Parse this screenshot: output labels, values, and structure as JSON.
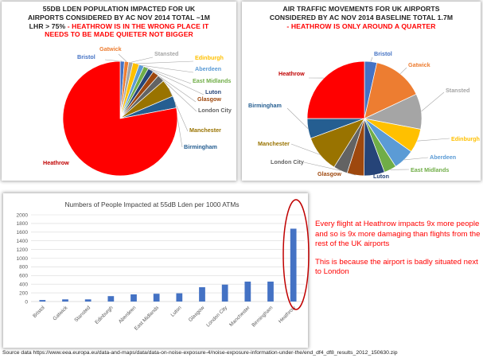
{
  "left_chart": {
    "title_lines": [
      "55DB LDEN POPULATION IMPACTED FOR UK",
      "AIRPORTS CONSIDERED BY AC NOV 2014 TOTAL ~1M",
      "LHR > 75% - HEATHROW IS IN THE WRONG PLACE IT",
      "NEEDS TO BE MADE QUIETER NOT BIGGER"
    ],
    "highlight_from": "- HEATHROW IS IN THE WRONG PLACE IT"
  },
  "right_chart": {
    "title_lines": [
      "AIR TRAFFIC MOVEMENTS FOR UK AIRPORTS",
      "CONSIDERED BY AC NOV 2014 BASELINE TOTAL 1.7M",
      "- HEATHROW IS ONLY AROUND A QUARTER"
    ]
  },
  "chart_data": [
    {
      "type": "pie",
      "title": "55DB LDEN POPULATION IMPACTED FOR UK AIRPORTS CONSIDERED BY AC NOV 2014 TOTAL ~1M LHR > 75% - HEATHROW IS IN THE WRONG PLACE IT NEEDS TO BE MADE QUIETER NOT BIGGER",
      "slices": [
        {
          "label": "Bristol",
          "value": 1.2,
          "color": "#4472C4"
        },
        {
          "label": "Gatwick",
          "value": 1.2,
          "color": "#ED7D31"
        },
        {
          "label": "Stansted",
          "value": 1.2,
          "color": "#A5A5A5"
        },
        {
          "label": "Edinburgh",
          "value": 1.8,
          "color": "#FFC000"
        },
        {
          "label": "Aberdeen",
          "value": 1.4,
          "color": "#5B9BD5"
        },
        {
          "label": "East Midlands",
          "value": 1.4,
          "color": "#70AD47"
        },
        {
          "label": "Luton",
          "value": 1.6,
          "color": "#264478"
        },
        {
          "label": "Glasgow",
          "value": 1.8,
          "color": "#9E480E"
        },
        {
          "label": "London City",
          "value": 2.0,
          "color": "#636363"
        },
        {
          "label": "Manchester",
          "value": 5.0,
          "color": "#997300"
        },
        {
          "label": "Birmingham",
          "value": 3.4,
          "color": "#255E91"
        },
        {
          "label": "Heathrow",
          "value": 78.0,
          "color": "#FF0000"
        }
      ]
    },
    {
      "type": "pie",
      "title": "AIR TRAFFIC MOVEMENTS FOR UK AIRPORTS CONSIDERED BY AC NOV 2014 BASELINE TOTAL 1.7M - HEATHROW IS ONLY AROUND A QUARTER",
      "slices": [
        {
          "label": "Bristol",
          "value": 3.5,
          "color": "#4472C4"
        },
        {
          "label": "Gatwick",
          "value": 14.5,
          "color": "#ED7D31"
        },
        {
          "label": "Stansted",
          "value": 10.0,
          "color": "#A5A5A5"
        },
        {
          "label": "Edinburgh",
          "value": 6.8,
          "color": "#FFC000"
        },
        {
          "label": "Aberdeen",
          "value": 6.0,
          "color": "#5B9BD5"
        },
        {
          "label": "East Midlands",
          "value": 3.5,
          "color": "#70AD47"
        },
        {
          "label": "Luton",
          "value": 5.8,
          "color": "#264478"
        },
        {
          "label": "Glasgow",
          "value": 4.8,
          "color": "#9E480E"
        },
        {
          "label": "London City",
          "value": 4.0,
          "color": "#636363"
        },
        {
          "label": "Manchester",
          "value": 10.5,
          "color": "#997300"
        },
        {
          "label": "Birmingham",
          "value": 5.6,
          "color": "#255E91"
        },
        {
          "label": "Heathrow",
          "value": 25.0,
          "color": "#FF0000"
        }
      ]
    },
    {
      "type": "bar",
      "title": "Numbers of People Impacted at 55dB Lden per 1000 ATMs",
      "categories": [
        "Bristol",
        "Gatwick",
        "Stansted",
        "Edinburgh",
        "Aberdeen",
        "East Midlands",
        "Luton",
        "Glasgow",
        "London City",
        "Manchester",
        "Birmingham",
        "Heathrow"
      ],
      "values": [
        35,
        50,
        50,
        125,
        165,
        180,
        190,
        330,
        390,
        460,
        460,
        1680
      ],
      "ylim": [
        0,
        2000
      ],
      "yticks": [
        0,
        200,
        400,
        600,
        800,
        1000,
        1200,
        1400,
        1600,
        1800,
        2000
      ],
      "color": "#4472C4",
      "grid": true,
      "highlight_color": "#C00000"
    }
  ],
  "note": {
    "paragraph1": "Every flight at Heathrow impacts 9x more people and so is 9x more damaging than flights from the rest of the UK airports",
    "paragraph2": "This is because the airport is badly situated next to London"
  },
  "source": "Source data https://www.eea.europa.eu/data-and-maps/data/data-on-noise-exposure-4/noise-exposure-information-under-the/end_df4_df8_results_2012_150630.zip"
}
